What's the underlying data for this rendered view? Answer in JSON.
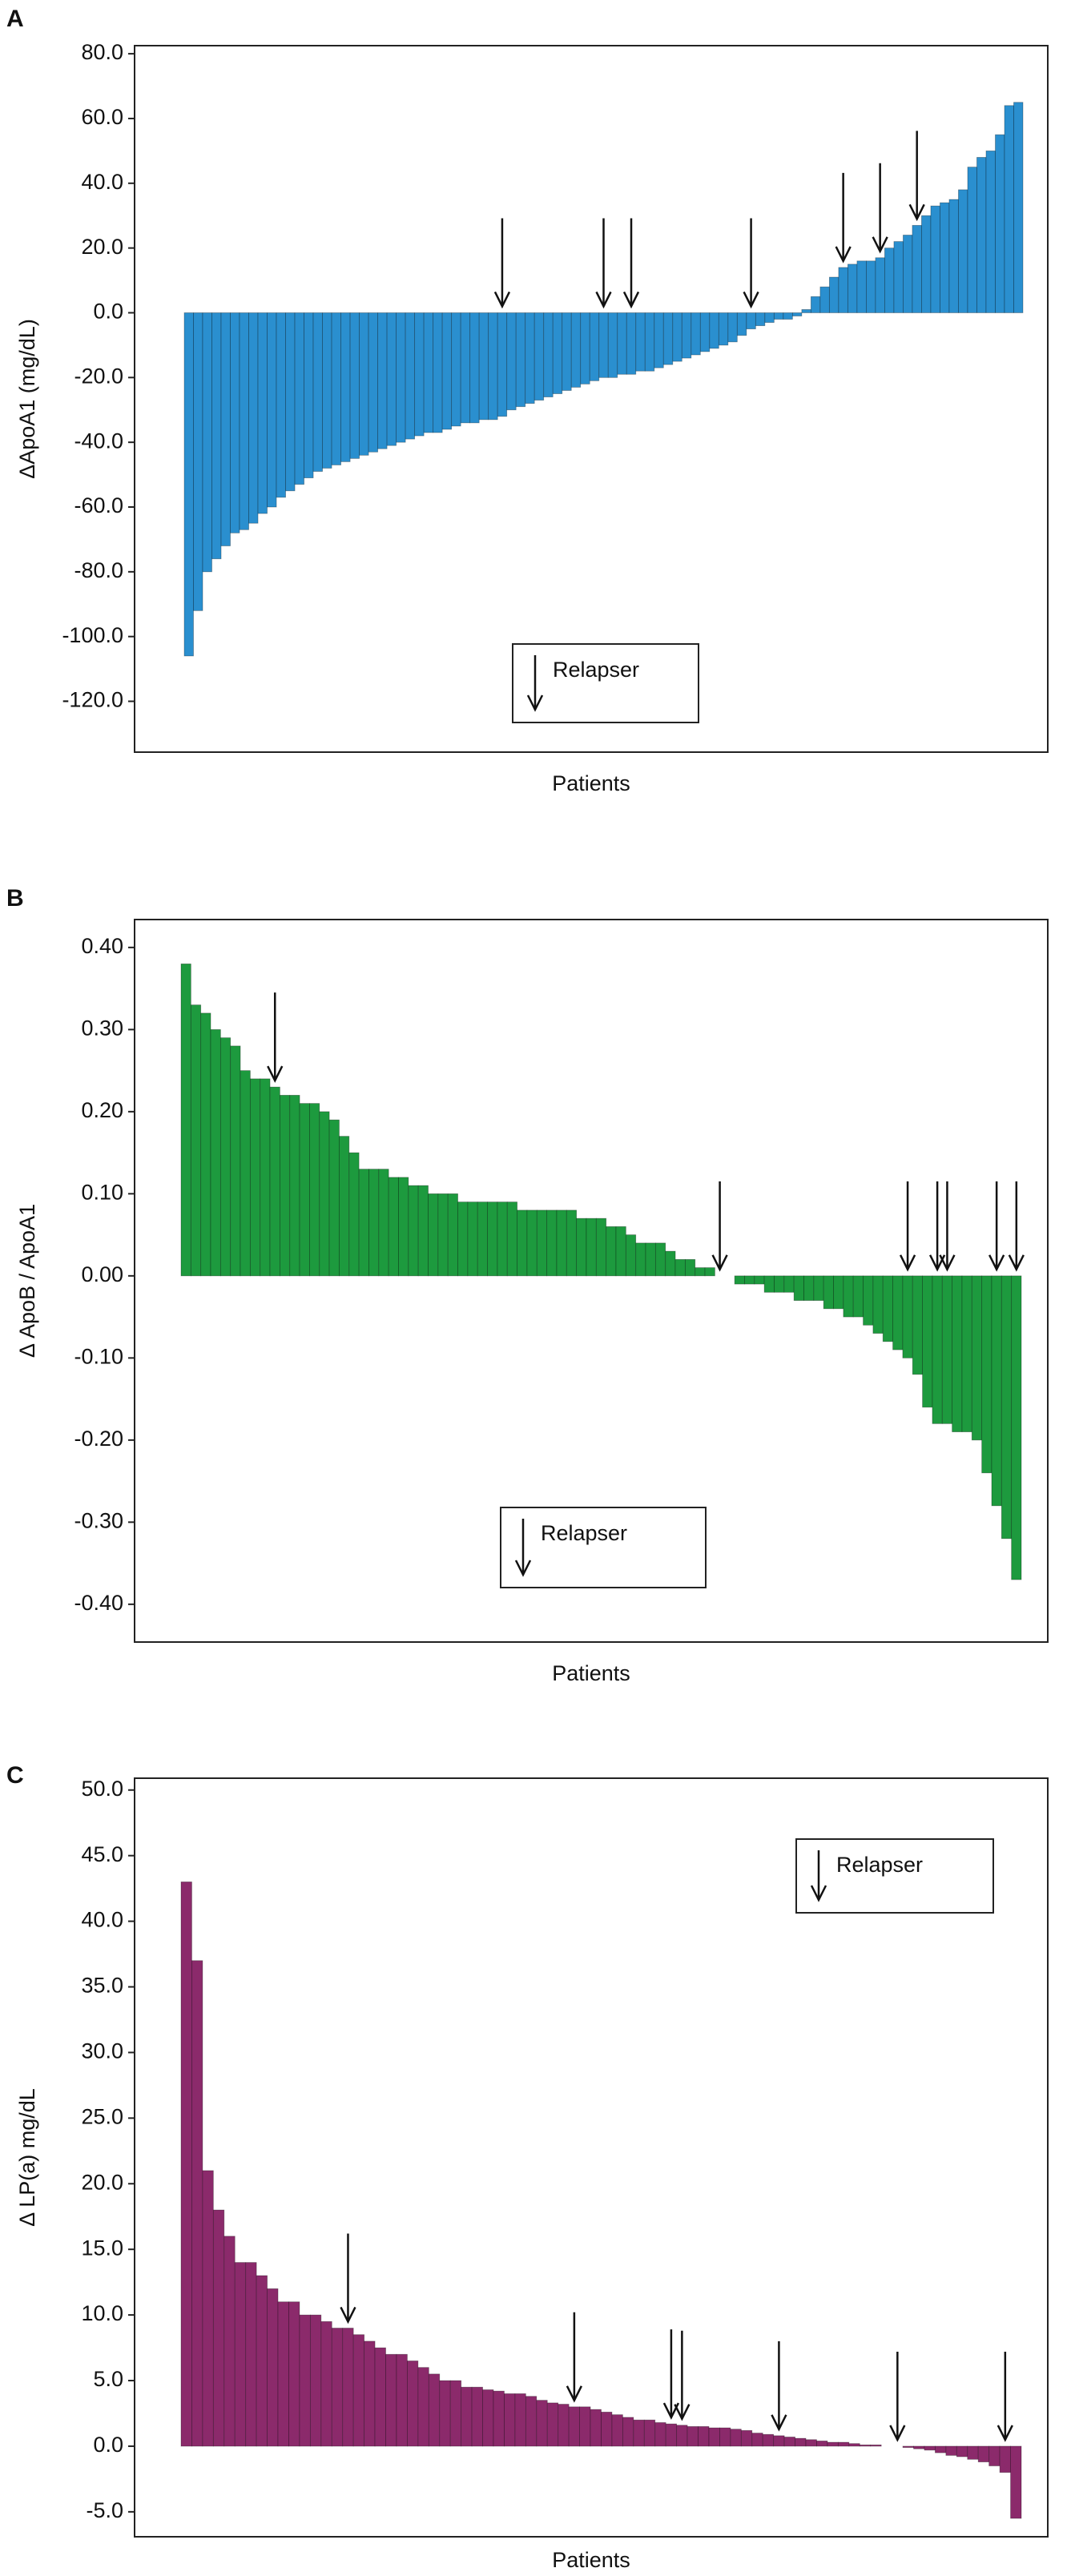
{
  "chart_data": [
    {
      "type": "bar",
      "panel": "A",
      "ylabel": "ΔApoA1 (mg/dL)",
      "xlabel": "Patients",
      "legend": "Relapser",
      "color": "#2a8fcf",
      "ylim": [
        -135.7,
        82.5
      ],
      "yticks": [
        {
          "value": 80,
          "label": "80.0"
        },
        {
          "value": 60,
          "label": "60.0"
        },
        {
          "value": 40,
          "label": "40.0"
        },
        {
          "value": 20,
          "label": "20.0"
        },
        {
          "value": 0,
          "label": "0.0"
        },
        {
          "value": -20,
          "label": "-20.0"
        },
        {
          "value": -40,
          "label": "-40.0"
        },
        {
          "value": -60,
          "label": "-60.0"
        },
        {
          "value": -80,
          "label": "-80.0"
        },
        {
          "value": -100,
          "label": "-100.0"
        },
        {
          "value": -120,
          "label": "-120.0"
        }
      ],
      "values": [
        -106,
        -92,
        -80,
        -76,
        -72,
        -68,
        -67,
        -65,
        -62,
        -60,
        -57,
        -55,
        -53,
        -51,
        -49,
        -48,
        -47,
        -46,
        -45,
        -44,
        -43,
        -42,
        -41,
        -40,
        -39,
        -38,
        -37,
        -37,
        -36,
        -35,
        -34,
        -34,
        -33,
        -33,
        -32,
        -30,
        -29,
        -28,
        -27,
        -26,
        -25,
        -24,
        -23,
        -22,
        -21,
        -20,
        -20,
        -19,
        -19,
        -18,
        -18,
        -17,
        -16,
        -15,
        -14,
        -13,
        -12,
        -11,
        -10,
        -9,
        -7,
        -5,
        -4,
        -3,
        -2,
        -2,
        -1,
        1,
        5,
        8,
        11,
        14,
        15,
        16,
        16,
        17,
        20,
        22,
        24,
        27,
        30,
        33,
        34,
        35,
        38,
        45,
        48,
        50,
        55,
        64,
        65
      ],
      "relapsers": [
        34,
        45,
        48,
        61,
        71,
        75,
        79
      ]
    },
    {
      "type": "bar",
      "panel": "B",
      "ylabel": "Δ ApoB / ApoA1",
      "xlabel": "Patients",
      "legend": "Relapser",
      "color": "#1d9a3e",
      "ylim": [
        -0.446,
        0.434
      ],
      "yticks": [
        {
          "value": 0.4,
          "label": "0.40"
        },
        {
          "value": 0.3,
          "label": "0.30"
        },
        {
          "value": 0.2,
          "label": "0.20"
        },
        {
          "value": 0.1,
          "label": "0.10"
        },
        {
          "value": 0,
          "label": "0.00"
        },
        {
          "value": -0.1,
          "label": "-0.10"
        },
        {
          "value": -0.2,
          "label": "-0.20"
        },
        {
          "value": -0.3,
          "label": "-0.30"
        },
        {
          "value": -0.4,
          "label": "-0.40"
        }
      ],
      "values": [
        0.38,
        0.33,
        0.32,
        0.3,
        0.29,
        0.28,
        0.25,
        0.24,
        0.24,
        0.23,
        0.22,
        0.22,
        0.21,
        0.21,
        0.2,
        0.19,
        0.17,
        0.15,
        0.13,
        0.13,
        0.13,
        0.12,
        0.12,
        0.11,
        0.11,
        0.1,
        0.1,
        0.1,
        0.09,
        0.09,
        0.09,
        0.09,
        0.09,
        0.09,
        0.08,
        0.08,
        0.08,
        0.08,
        0.08,
        0.08,
        0.07,
        0.07,
        0.07,
        0.06,
        0.06,
        0.05,
        0.04,
        0.04,
        0.04,
        0.03,
        0.02,
        0.02,
        0.01,
        0.01,
        0,
        0,
        -0.01,
        -0.01,
        -0.01,
        -0.02,
        -0.02,
        -0.02,
        -0.03,
        -0.03,
        -0.03,
        -0.04,
        -0.04,
        -0.05,
        -0.05,
        -0.06,
        -0.07,
        -0.08,
        -0.09,
        -0.1,
        -0.12,
        -0.16,
        -0.18,
        -0.18,
        -0.19,
        -0.19,
        -0.2,
        -0.24,
        -0.28,
        -0.32,
        -0.37
      ],
      "relapsers": [
        9,
        54,
        73,
        76,
        77,
        82,
        84
      ]
    },
    {
      "type": "bar",
      "panel": "C",
      "ylabel": "Δ LP(a) mg/dL",
      "xlabel": "Patients",
      "legend": "Relapser",
      "color": "#8b2a6b",
      "ylim": [
        -6.9,
        50.9
      ],
      "yticks": [
        {
          "value": 50,
          "label": "50.0"
        },
        {
          "value": 45,
          "label": "45.0"
        },
        {
          "value": 40,
          "label": "40.0"
        },
        {
          "value": 35,
          "label": "35.0"
        },
        {
          "value": 30,
          "label": "30.0"
        },
        {
          "value": 25,
          "label": "25.0"
        },
        {
          "value": 20,
          "label": "20.0"
        },
        {
          "value": 15,
          "label": "15.0"
        },
        {
          "value": 10,
          "label": "10.0"
        },
        {
          "value": 5,
          "label": "5.0"
        },
        {
          "value": 0,
          "label": "0.0"
        },
        {
          "value": -5,
          "label": "-5.0"
        }
      ],
      "values": [
        43,
        37,
        21,
        18,
        16,
        14,
        14,
        13,
        12,
        11,
        11,
        10,
        10,
        9.5,
        9,
        9,
        8.5,
        8,
        7.5,
        7,
        7,
        6.5,
        6,
        5.5,
        5,
        5,
        4.5,
        4.5,
        4.3,
        4.2,
        4,
        4,
        3.8,
        3.5,
        3.3,
        3.2,
        3,
        3,
        2.8,
        2.6,
        2.4,
        2.2,
        2,
        2,
        1.8,
        1.7,
        1.6,
        1.5,
        1.5,
        1.4,
        1.4,
        1.3,
        1.2,
        1,
        0.9,
        0.8,
        0.7,
        0.6,
        0.5,
        0.4,
        0.3,
        0.3,
        0.2,
        0.1,
        0.1,
        0,
        0,
        -0.1,
        -0.2,
        -0.3,
        -0.5,
        -0.7,
        -0.8,
        -1,
        -1.2,
        -1.5,
        -2,
        -5.5
      ],
      "relapsers": [
        15,
        36,
        45,
        46,
        55,
        66,
        76
      ]
    }
  ]
}
